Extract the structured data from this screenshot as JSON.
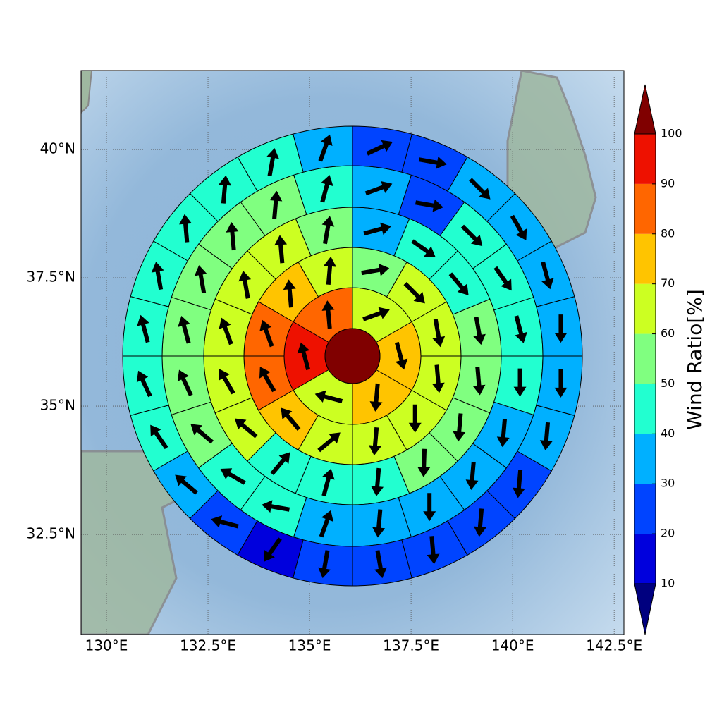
{
  "chart_data": {
    "type": "polar-grid-map",
    "xlim": [
      129.375,
      142.74
    ],
    "ylim": [
      30.55,
      41.54
    ],
    "xticks": [
      {
        "value": 130,
        "label": "130°E"
      },
      {
        "value": 132.5,
        "label": "132.5°E"
      },
      {
        "value": 135,
        "label": "135°E"
      },
      {
        "value": 137.5,
        "label": "137.5°E"
      },
      {
        "value": 140,
        "label": "140°E"
      },
      {
        "value": 142.5,
        "label": "142.5°E"
      }
    ],
    "yticks": [
      {
        "value": 32.5,
        "label": "32.5°N"
      },
      {
        "value": 35,
        "label": "35°N"
      },
      {
        "value": 37.5,
        "label": "37.5°N"
      },
      {
        "value": 40,
        "label": "40°N"
      }
    ],
    "grid": true,
    "center_value": 105,
    "rings": [
      {
        "values": [
          63,
          84,
          92,
          64,
          73,
          74
        ],
        "directions": [
          20,
          95,
          105,
          165,
          -95,
          -75
        ]
      },
      {
        "values": [
          65,
          63,
          55,
          65,
          74,
          83,
          83,
          73,
          64,
          63,
          62,
          63
        ],
        "directions": [
          -80,
          -45,
          10,
          85,
          95,
          110,
          120,
          130,
          40,
          -95,
          -90,
          -85
        ]
      },
      {
        "values": [
          55,
          45,
          45,
          35,
          55,
          60,
          63,
          62,
          63,
          62,
          45,
          45,
          45,
          52,
          55,
          57
        ],
        "directions": [
          -80,
          -50,
          -35,
          15,
          80,
          95,
          100,
          110,
          120,
          140,
          50,
          75,
          -95,
          -92,
          -95,
          -85
        ]
      },
      {
        "values": [
          45,
          45,
          43,
          25,
          35,
          45,
          55,
          55,
          55,
          53,
          52,
          52,
          48,
          45,
          35,
          35,
          35,
          35,
          35,
          45
        ],
        "directions": [
          -75,
          -55,
          -45,
          -10,
          20,
          75,
          85,
          95,
          100,
          105,
          115,
          140,
          150,
          170,
          70,
          -95,
          -90,
          -95,
          -95,
          -90
        ]
      },
      {
        "values": [
          35,
          35,
          35,
          35,
          25,
          25,
          35,
          45,
          45,
          45,
          45,
          45,
          45,
          45,
          35,
          25,
          15,
          25,
          25,
          25,
          25,
          25,
          35,
          35
        ],
        "directions": [
          -90,
          -75,
          -60,
          -45,
          -10,
          25,
          70,
          80,
          85,
          95,
          100,
          105,
          115,
          125,
          140,
          165,
          235,
          260,
          -80,
          -85,
          -95,
          -95,
          -95,
          -90
        ]
      }
    ],
    "colorbar": {
      "label": "Wind Ratio[%]",
      "levels": [
        10,
        20,
        30,
        40,
        50,
        60,
        70,
        80,
        90,
        100
      ],
      "colors": [
        "#00007f",
        "#0000dd",
        "#0044ff",
        "#00b0ff",
        "#22ffd0",
        "#80ff80",
        "#ccff22",
        "#ffc400",
        "#ff6600",
        "#ee1100",
        "#800000"
      ]
    }
  }
}
